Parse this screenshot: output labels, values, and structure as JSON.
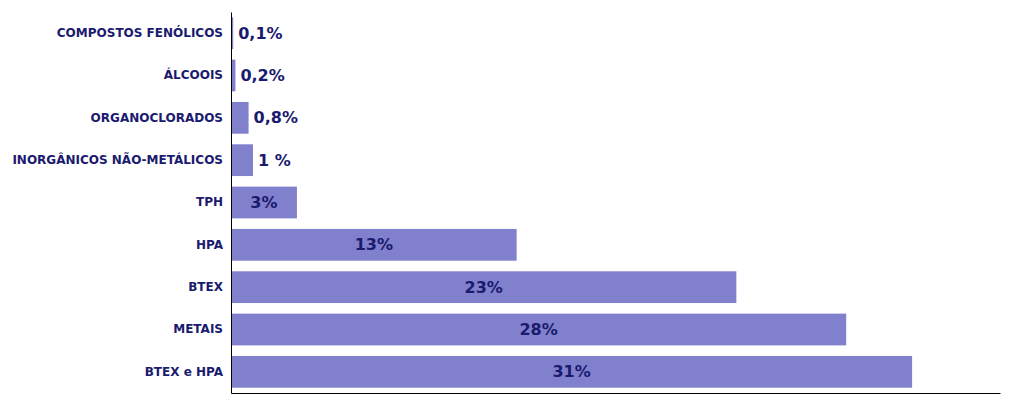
{
  "chart_data": {
    "type": "bar",
    "orientation": "horizontal",
    "categories": [
      "BTEX e HPA",
      "METAIS",
      "BTEX",
      "HPA",
      "TPH",
      "INORGÂNICOS NÃO-METÁLICOS",
      "ORGANOCLORADOS",
      "ÁLCOOIS",
      "COMPOSTOS FENÓLICOS"
    ],
    "values": [
      31,
      28,
      23,
      13,
      3,
      1,
      0.8,
      0.2,
      0.1
    ],
    "value_labels": [
      "31%",
      "28%",
      "23%",
      "13%",
      "3%",
      "1 %",
      "0,8%",
      "0,2%",
      "0,1%"
    ],
    "color": "#8080cc",
    "xlim": [
      0,
      35
    ],
    "data_labels": true,
    "tick_labels": "y",
    "grid": false
  }
}
